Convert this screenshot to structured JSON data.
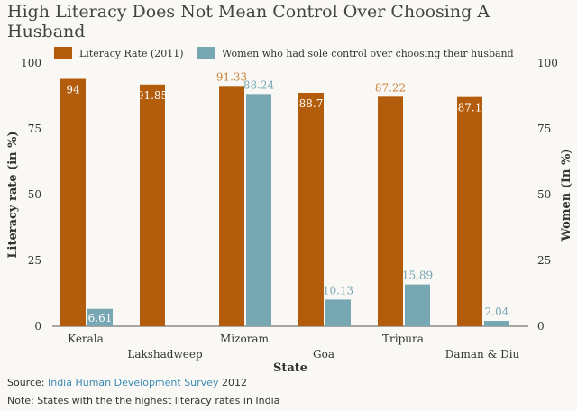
{
  "title": "High Literacy Does Not Mean Control Over Choosing A Husband",
  "source": {
    "prefix": "Source: ",
    "link_text": "India Human Development Survey",
    "suffix": " 2012"
  },
  "note": "Note: States with the the highest literacy rates in India",
  "colors": {
    "literacy": "#b35c0c",
    "women": "#76a7b3",
    "literacy_label": "#c98540",
    "women_label": "#76a7b3",
    "inside_label": "#ffffff",
    "axis": "#555555"
  },
  "chart_data": {
    "type": "bar",
    "title": "High Literacy Does Not Mean Control Over Choosing A Husband",
    "xlabel": "State",
    "ylabel": "Literacy rate (in %)",
    "y2label": "Women (In %)",
    "ylim": [
      0,
      100
    ],
    "yticks": [
      "0",
      "25",
      "50",
      "75",
      "100"
    ],
    "grid": false,
    "legend_position": "top",
    "categories": [
      "Kerala",
      "Lakshadweep",
      "Mizoram",
      "Goa",
      "Tripura",
      "Daman & Diu"
    ],
    "series": [
      {
        "name": "Literacy Rate (2011)",
        "values": [
          94,
          91.85,
          91.33,
          88.7,
          87.22,
          87.1
        ],
        "labels": [
          "94",
          "91.85",
          "91.33",
          "88.7",
          "87.22",
          "87.1"
        ],
        "label_inside": [
          true,
          true,
          false,
          true,
          false,
          true
        ]
      },
      {
        "name": "Women who had sole control over choosing their husband",
        "values": [
          6.61,
          null,
          88.24,
          10.13,
          15.89,
          2.04
        ],
        "labels": [
          "6.61",
          "",
          "88.24",
          "10.13",
          "15.89",
          "2.04"
        ],
        "label_inside": [
          true,
          false,
          false,
          false,
          false,
          false
        ]
      }
    ]
  }
}
